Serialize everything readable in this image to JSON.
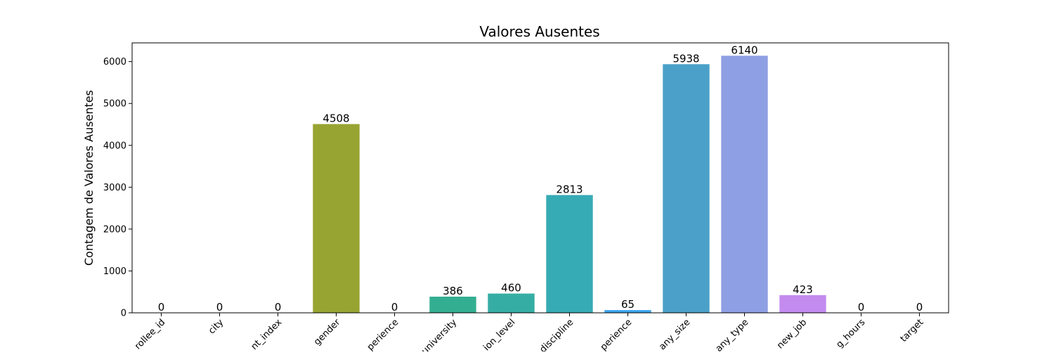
{
  "chart_data": {
    "type": "bar",
    "title": "Valores Ausentes",
    "xlabel": "",
    "ylabel": "Contagem de Valores Ausentes",
    "ylim": [
      0,
      6447
    ],
    "yticks": [
      0,
      1000,
      2000,
      3000,
      4000,
      5000,
      6000
    ],
    "ytick_labels": [
      "0",
      "1000",
      "2000",
      "3000",
      "4000",
      "5000",
      "6000"
    ],
    "categories": [
      "rollee_id",
      "city",
      "nt_index",
      "gender",
      "perience",
      "university",
      "ion_level",
      "discipline",
      "perience",
      "any_size",
      "any_type",
      "new_job",
      "g_hours",
      "target"
    ],
    "values": [
      0,
      0,
      0,
      4508,
      0,
      386,
      460,
      2813,
      65,
      5938,
      6140,
      423,
      0,
      0
    ],
    "data_labels": [
      "0",
      "0",
      "0",
      "4508",
      "0",
      "386",
      "460",
      "2813",
      "65",
      "5938",
      "6140",
      "423",
      "0",
      "0"
    ],
    "colors": [
      "#f77189",
      "#e68332",
      "#bb9832",
      "#97a431",
      "#50b131",
      "#34ae91",
      "#36ada4",
      "#37abb5",
      "#3ba3ec",
      "#4aa0c8",
      "#8f9fe4",
      "#c48bee",
      "#f461dd",
      "#f56bc1"
    ],
    "grid": false,
    "legend": "none"
  }
}
